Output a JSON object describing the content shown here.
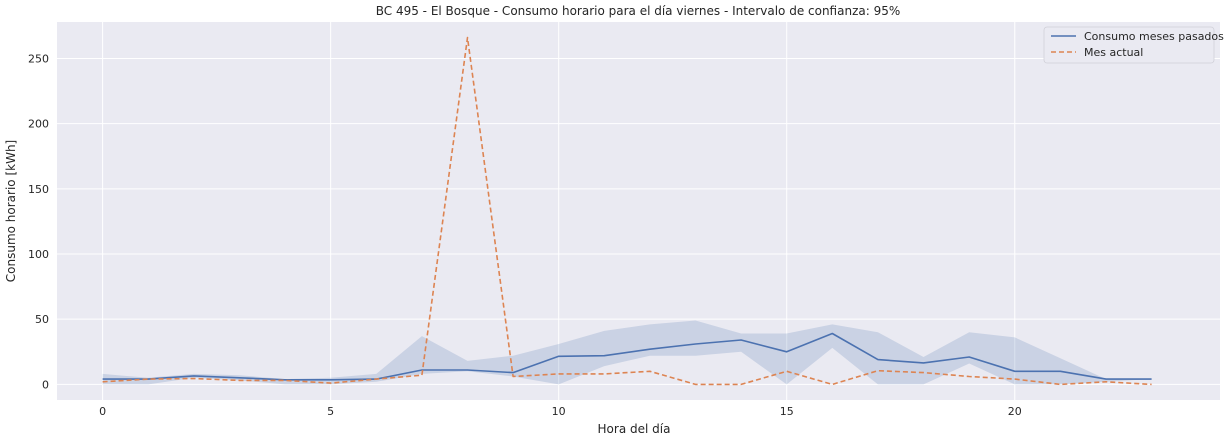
{
  "chart_data": {
    "type": "line",
    "title": "BC 495 - El Bosque - Consumo horario para el día viernes - Intervalo de confianza: 95%",
    "xlabel": "Hora del día",
    "ylabel": "Consumo horario [kWh]",
    "xlim": [
      -1,
      24.5
    ],
    "ylim": [
      -12,
      278
    ],
    "xticks": [
      0,
      5,
      10,
      15,
      20
    ],
    "yticks": [
      0,
      50,
      100,
      150,
      200,
      250
    ],
    "grid": true,
    "legend_position": "top-right",
    "x": [
      0,
      1,
      2,
      3,
      4,
      5,
      6,
      7,
      8,
      9,
      10,
      11,
      12,
      13,
      14,
      15,
      16,
      17,
      18,
      19,
      20,
      21,
      22,
      23
    ],
    "series": [
      {
        "name": "Consumo meses pasados",
        "style": "solid",
        "color": "#4c72b0",
        "values": [
          4,
          4,
          6.5,
          5,
          3.5,
          3.5,
          4,
          11,
          11,
          9,
          21.5,
          22,
          27,
          31,
          34,
          25,
          39,
          19,
          16.5,
          21,
          10,
          10,
          4,
          4
        ],
        "ci_lower": [
          0,
          0,
          5,
          3,
          0,
          0,
          2,
          8,
          10,
          6,
          0,
          14,
          22,
          22,
          25,
          0,
          28,
          0,
          0,
          16,
          0,
          0,
          2,
          4
        ],
        "ci_upper": [
          8,
          5,
          8,
          7,
          4,
          5,
          8,
          37,
          18,
          22,
          31,
          41,
          46,
          49,
          39,
          39,
          46,
          40,
          21,
          40,
          36,
          20,
          4,
          4
        ]
      },
      {
        "name": "Mes actual",
        "style": "dashed",
        "color": "#dd8452",
        "values": [
          2,
          4,
          4.5,
          3,
          3,
          1,
          4,
          7,
          266,
          6,
          8,
          8,
          10,
          0,
          0,
          10,
          0,
          10.5,
          9,
          6,
          4,
          0,
          2,
          0
        ]
      }
    ]
  }
}
